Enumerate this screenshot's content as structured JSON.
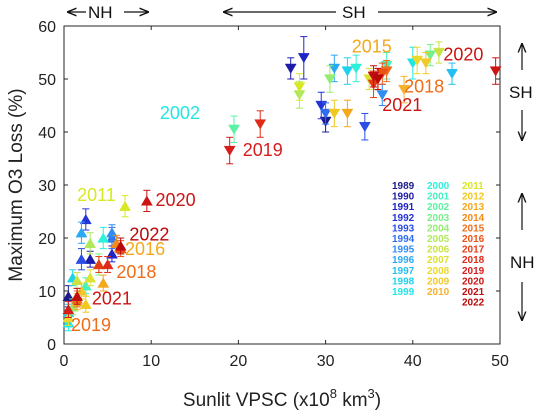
{
  "chart_data": {
    "type": "scatter",
    "xlabel": "Sunlit VPSC (x10",
    "xlabel_sup": "8",
    "xlabel_unit": " km",
    "xlabel_sup2": "3",
    "xlabel_end": ")",
    "ylabel": "Maximum O3 Loss (%)",
    "xlim": [
      0,
      50
    ],
    "ylim": [
      0,
      60
    ],
    "x_ticks": [
      "0",
      "10",
      "20",
      "30",
      "40",
      "50"
    ],
    "y_ticks": [
      "0",
      "10",
      "20",
      "30",
      "40",
      "50",
      "60"
    ],
    "grid": false,
    "legend_position": "lower-right",
    "markers": {
      "SH": "triangle-down",
      "NH": "triangle-up"
    },
    "year_colors": {
      "1989": "#1a1a8c",
      "1990": "#1c1ca8",
      "1991": "#1f24c4",
      "1992": "#2233d8",
      "1993": "#2a4ee6",
      "1994": "#2f6cf0",
      "1995": "#2f8df4",
      "1996": "#2aa8f6",
      "1997": "#21bff2",
      "1998": "#1fd2ec",
      "1999": "#22e6e6",
      "2000": "#2ff0d8",
      "2001": "#44f2c0",
      "2002": "#5cf2a4",
      "2003": "#78f08a",
      "2004": "#94ec70",
      "2005": "#b0e85a",
      "2006": "#c8e444",
      "2007": "#dee032",
      "2008": "#ecd82a",
      "2009": "#f2c82a",
      "2010": "#f4b22c",
      "2011": "#d8e822",
      "2012": "#f2c81e",
      "2013": "#f4a81c",
      "2014": "#f48a1a",
      "2015": "#f06c18",
      "2016": "#ec5216",
      "2017": "#e63c16",
      "2018": "#e02a18",
      "2019": "#d81c1c",
      "2020": "#cc1414",
      "2021": "#c00c0c",
      "2022": "#b80808"
    },
    "legend_columns": [
      [
        "1989",
        "1990",
        "1991",
        "1992",
        "1993",
        "1994",
        "1995",
        "1996",
        "1997",
        "1998",
        "1999"
      ],
      [
        "2000",
        "2001",
        "2002",
        "2003",
        "2004",
        "2005",
        "2006",
        "2007",
        "2008",
        "2009",
        "2010"
      ],
      [
        "2011",
        "2012",
        "2013",
        "2014",
        "2015",
        "2016",
        "2017",
        "2018",
        "2019",
        "2020",
        "2021",
        "2022"
      ]
    ],
    "series": [
      {
        "hemisphere": "SH",
        "points": [
          {
            "year": "1989",
            "x": 30,
            "y": 42,
            "err": 2
          },
          {
            "year": "1990",
            "x": 26,
            "y": 52,
            "err": 2
          },
          {
            "year": "1991",
            "x": 27.5,
            "y": 54,
            "err": 4
          },
          {
            "year": "1992",
            "x": 29.5,
            "y": 45,
            "err": 2.5
          },
          {
            "year": "1993",
            "x": 34.5,
            "y": 41,
            "err": 2.5
          },
          {
            "year": "1994",
            "x": 30,
            "y": 43.5,
            "err": 2
          },
          {
            "year": "1995",
            "x": 36.5,
            "y": 47,
            "err": 2
          },
          {
            "year": "1996",
            "x": 31,
            "y": 52,
            "err": 2.5
          },
          {
            "year": "1997",
            "x": 44.5,
            "y": 51,
            "err": 2
          },
          {
            "year": "1998",
            "x": 32.5,
            "y": 51.5,
            "err": 2.5
          },
          {
            "year": "1999",
            "x": 40,
            "y": 53,
            "err": 3
          },
          {
            "year": "2000",
            "x": 33.5,
            "y": 52,
            "err": 2.5
          },
          {
            "year": "2001",
            "x": 37,
            "y": 52.5,
            "err": 2.5
          },
          {
            "year": "2002",
            "x": 19.5,
            "y": 40.5,
            "err": 2.5
          },
          {
            "year": "2003",
            "x": 42,
            "y": 54.5,
            "err": 2
          },
          {
            "year": "2004",
            "x": 30.5,
            "y": 50,
            "err": 2.5
          },
          {
            "year": "2005",
            "x": 27,
            "y": 47,
            "err": 2.5
          },
          {
            "year": "2006",
            "x": 43,
            "y": 55,
            "err": 2
          },
          {
            "year": "2007",
            "x": 35,
            "y": 50,
            "err": 2
          },
          {
            "year": "2008",
            "x": 40.5,
            "y": 53.5,
            "err": 2.5
          },
          {
            "year": "2009",
            "x": 41.5,
            "y": 53,
            "err": 2
          },
          {
            "year": "2010",
            "x": 39,
            "y": 48,
            "err": 2.5
          },
          {
            "year": "2011",
            "x": 27,
            "y": 48.5,
            "err": 2.5
          },
          {
            "year": "2012",
            "x": 31,
            "y": 43.5,
            "err": 2.5
          },
          {
            "year": "2013",
            "x": 32.5,
            "y": 43.5,
            "err": 2.5
          },
          {
            "year": "2014",
            "x": 36,
            "y": 50,
            "err": 2
          },
          {
            "year": "2015",
            "x": 37,
            "y": 51.5,
            "err": 2
          },
          {
            "year": "2016",
            "x": 36.5,
            "y": 51,
            "err": 2
          },
          {
            "year": "2017",
            "x": 35.5,
            "y": 49,
            "err": 2.5
          },
          {
            "year": "2018",
            "x": 22.5,
            "y": 41.5,
            "err": 2.5
          },
          {
            "year": "2019",
            "x": 19,
            "y": 36.5,
            "err": 2.5
          },
          {
            "year": "2020",
            "x": 49.5,
            "y": 51.5,
            "err": 2.5
          },
          {
            "year": "2021",
            "x": 35.5,
            "y": 50.5,
            "err": 2
          },
          {
            "year": "2022",
            "x": 36,
            "y": 50,
            "err": 2
          }
        ]
      },
      {
        "hemisphere": "NH",
        "points": [
          {
            "year": "1989",
            "x": 0.5,
            "y": 9,
            "err": 2
          },
          {
            "year": "1990",
            "x": 3,
            "y": 16,
            "err": 1.5
          },
          {
            "year": "1991",
            "x": 5.5,
            "y": 17,
            "err": 1.5
          },
          {
            "year": "1992",
            "x": 2.5,
            "y": 23.5,
            "err": 2
          },
          {
            "year": "1993",
            "x": 2,
            "y": 16,
            "err": 2
          },
          {
            "year": "1994",
            "x": 5.5,
            "y": 20,
            "err": 2
          },
          {
            "year": "1995",
            "x": 5.5,
            "y": 21,
            "err": 1.5
          },
          {
            "year": "1996",
            "x": 2,
            "y": 21,
            "err": 2
          },
          {
            "year": "1997",
            "x": 0.5,
            "y": 6,
            "err": 1.5
          },
          {
            "year": "1998",
            "x": 1,
            "y": 12.5,
            "err": 1.5
          },
          {
            "year": "1999",
            "x": 0.5,
            "y": 4,
            "err": 1.5
          },
          {
            "year": "2000",
            "x": 4.5,
            "y": 20,
            "err": 2
          },
          {
            "year": "2001",
            "x": 2.5,
            "y": 11,
            "err": 1.5
          },
          {
            "year": "2002",
            "x": 0.5,
            "y": 5,
            "err": 1.5
          },
          {
            "year": "2003",
            "x": 4,
            "y": 15,
            "err": 2
          },
          {
            "year": "2004",
            "x": 1,
            "y": 7,
            "err": 1.5
          },
          {
            "year": "2005",
            "x": 3,
            "y": 19,
            "err": 2
          },
          {
            "year": "2006",
            "x": 1.5,
            "y": 12,
            "err": 1.5
          },
          {
            "year": "2007",
            "x": 3,
            "y": 12.5,
            "err": 1.5
          },
          {
            "year": "2008",
            "x": 0.5,
            "y": 5,
            "err": 1.5
          },
          {
            "year": "2009",
            "x": 2,
            "y": 10,
            "err": 1.5
          },
          {
            "year": "2010",
            "x": 1.5,
            "y": 8,
            "err": 1.5
          },
          {
            "year": "2011",
            "x": 7,
            "y": 26,
            "err": 2
          },
          {
            "year": "2012",
            "x": 2.5,
            "y": 7.5,
            "err": 1.5
          },
          {
            "year": "2013",
            "x": 4.5,
            "y": 11.5,
            "err": 1.5
          },
          {
            "year": "2014",
            "x": 6,
            "y": 19,
            "err": 1.5
          },
          {
            "year": "2015",
            "x": 1.5,
            "y": 8.5,
            "err": 1.5
          },
          {
            "year": "2016",
            "x": 6.5,
            "y": 18,
            "err": 1.5
          },
          {
            "year": "2017",
            "x": 4,
            "y": 15,
            "err": 1.5
          },
          {
            "year": "2018",
            "x": 5,
            "y": 15,
            "err": 1.5
          },
          {
            "year": "2019",
            "x": 0.5,
            "y": 6.5,
            "err": 1.5
          },
          {
            "year": "2020",
            "x": 9.5,
            "y": 27,
            "err": 2
          },
          {
            "year": "2021",
            "x": 1.5,
            "y": 9,
            "err": 1.5
          },
          {
            "year": "2022",
            "x": 6.5,
            "y": 18.5,
            "err": 1.5
          }
        ]
      }
    ],
    "annotations": [
      {
        "text": "2002",
        "x": 11,
        "y": 42.5,
        "color": "#22e6e6"
      },
      {
        "text": "2019",
        "x": 20.5,
        "y": 35.5,
        "color": "#d81c1c"
      },
      {
        "text": "2015",
        "x": 33,
        "y": 55,
        "color": "#f4a81c"
      },
      {
        "text": "2018",
        "x": 39,
        "y": 47.5,
        "color": "#f06c18"
      },
      {
        "text": "2021",
        "x": 36.5,
        "y": 44,
        "color": "#cc1414"
      },
      {
        "text": "2020",
        "x": 43.5,
        "y": 53.5,
        "color": "#cc1414"
      },
      {
        "text": "2011",
        "x": 1.5,
        "y": 27,
        "color": "#d8e822"
      },
      {
        "text": "2020",
        "x": 10.5,
        "y": 26,
        "color": "#cc1414"
      },
      {
        "text": "2022",
        "x": 7.5,
        "y": 19.5,
        "color": "#b80808"
      },
      {
        "text": "2016",
        "x": 7,
        "y": 16.8,
        "color": "#f4a81c"
      },
      {
        "text": "2018",
        "x": 6,
        "y": 12.5,
        "color": "#f06c18"
      },
      {
        "text": "2021",
        "x": 3.2,
        "y": 7.5,
        "color": "#cc1414"
      },
      {
        "text": "2019",
        "x": 0.8,
        "y": 2.5,
        "color": "#f06c18"
      }
    ],
    "hemisphere_labels": {
      "top_nh": "NH",
      "top_sh": "SH",
      "right_sh": "SH",
      "right_nh": "NH"
    }
  }
}
